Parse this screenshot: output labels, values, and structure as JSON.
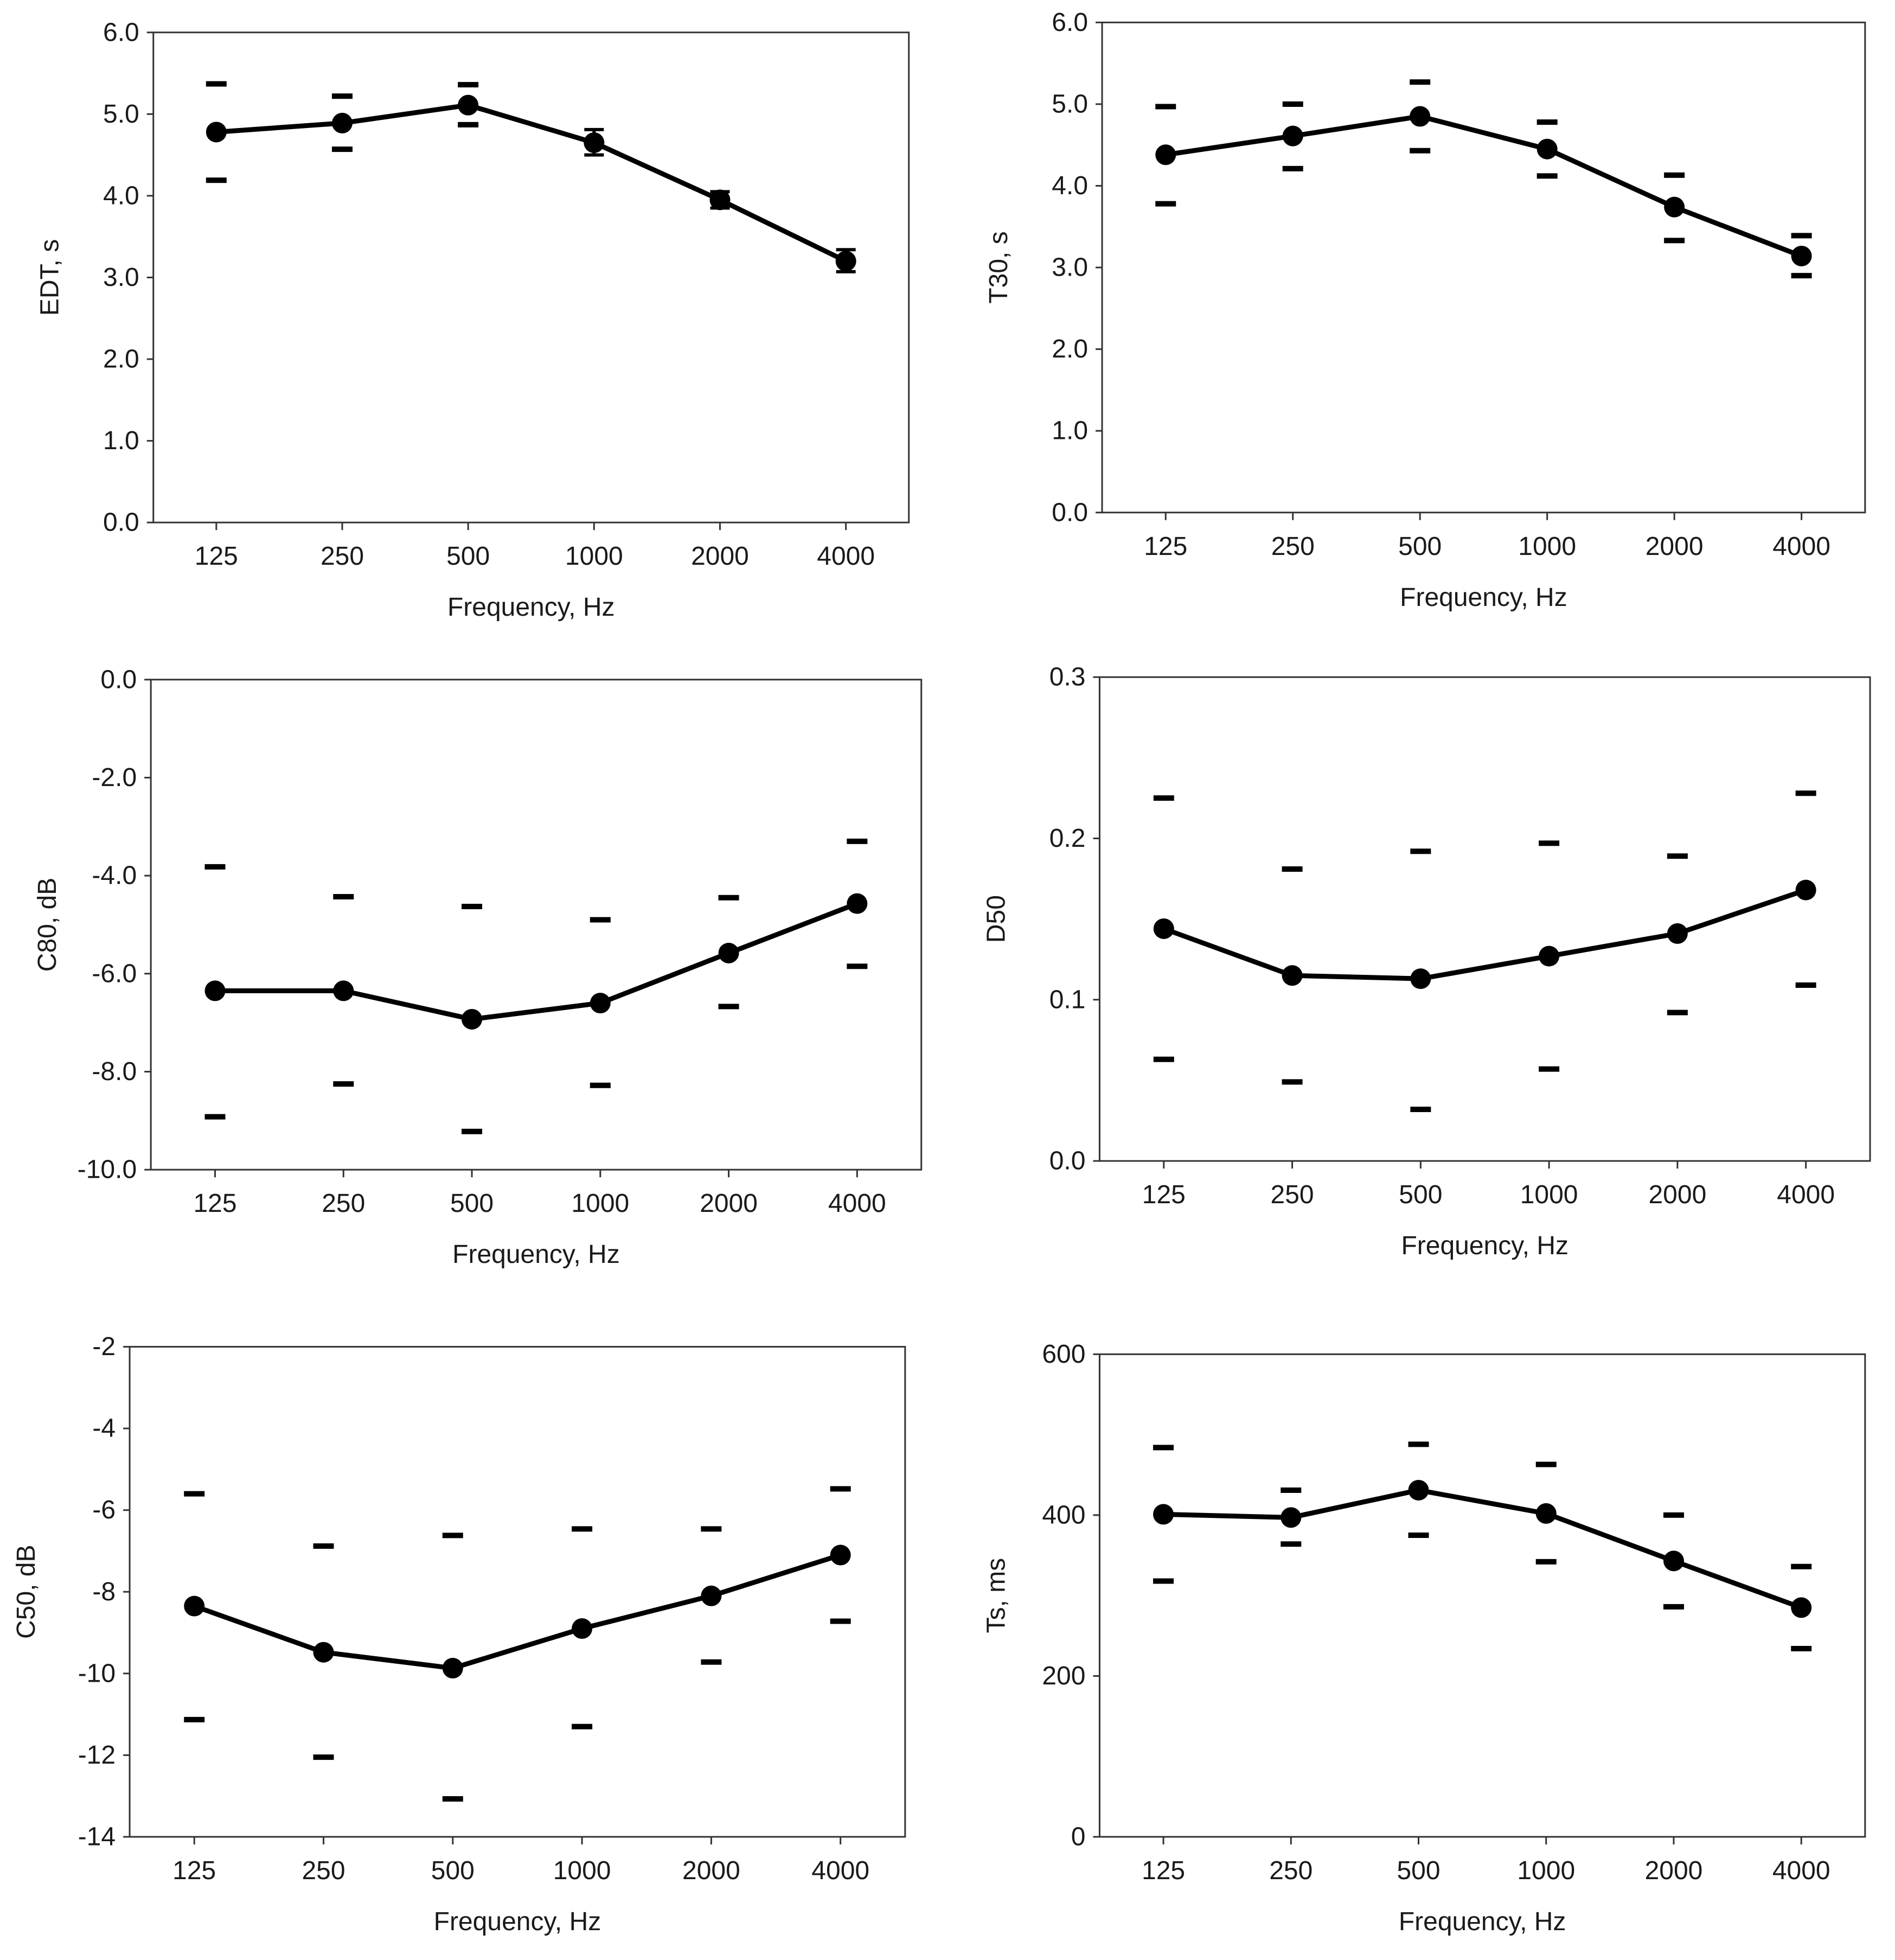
{
  "figure": {
    "background": "#ffffff",
    "line_color": "#000000"
  },
  "chart_data": [
    {
      "id": "edt",
      "type": "line",
      "xlabel": "Frequency, Hz",
      "ylabel": "EDT, s",
      "categories": [
        "125",
        "250",
        "500",
        "1000",
        "2000",
        "4000"
      ],
      "ylim": [
        0,
        6
      ],
      "yticks": [
        0,
        1,
        2,
        3,
        4,
        5,
        6
      ],
      "ytick_labels": [
        "0.0",
        "1.0",
        "2.0",
        "3.0",
        "4.0",
        "5.0",
        "6.0"
      ],
      "values": [
        4.78,
        4.89,
        5.11,
        4.65,
        3.95,
        3.2
      ],
      "upper": [
        5.37,
        5.22,
        5.36,
        4.81,
        4.05,
        3.34
      ],
      "lower": [
        4.19,
        4.57,
        4.87,
        4.5,
        3.85,
        3.07
      ],
      "small_error_bars": [
        false,
        false,
        false,
        true,
        true,
        true
      ]
    },
    {
      "id": "t30",
      "type": "line",
      "xlabel": "Frequency, Hz",
      "ylabel": "T30, s",
      "categories": [
        "125",
        "250",
        "500",
        "1000",
        "2000",
        "4000"
      ],
      "ylim": [
        0,
        6
      ],
      "yticks": [
        0,
        1,
        2,
        3,
        4,
        5,
        6
      ],
      "ytick_labels": [
        "0.0",
        "1.0",
        "2.0",
        "3.0",
        "4.0",
        "5.0",
        "6.0"
      ],
      "values": [
        4.38,
        4.61,
        4.85,
        4.45,
        3.74,
        3.14
      ],
      "upper": [
        4.97,
        5.0,
        5.27,
        4.78,
        4.13,
        3.39
      ],
      "lower": [
        3.78,
        4.21,
        4.43,
        4.12,
        3.33,
        2.9
      ],
      "small_error_bars": [
        false,
        false,
        false,
        false,
        false,
        false
      ]
    },
    {
      "id": "c80",
      "type": "line",
      "xlabel": "Frequency, Hz",
      "ylabel": "C80, dB",
      "categories": [
        "125",
        "250",
        "500",
        "1000",
        "2000",
        "4000"
      ],
      "ylim": [
        -10,
        0
      ],
      "yticks": [
        -10,
        -8,
        -6,
        -4,
        -2,
        0
      ],
      "ytick_labels": [
        "-10.0",
        "-8.0",
        "-6.0",
        "-4.0",
        "-2.0",
        "0.0"
      ],
      "values": [
        -6.35,
        -6.35,
        -6.93,
        -6.6,
        -5.58,
        -4.57
      ],
      "upper": [
        -3.82,
        -4.43,
        -4.63,
        -4.9,
        -4.45,
        -3.3
      ],
      "lower": [
        -8.92,
        -8.25,
        -9.22,
        -8.28,
        -6.67,
        -5.85
      ],
      "small_error_bars": [
        false,
        false,
        false,
        false,
        false,
        false
      ]
    },
    {
      "id": "d50",
      "type": "line",
      "xlabel": "Frequency, Hz",
      "ylabel": "D50",
      "categories": [
        "125",
        "250",
        "500",
        "1000",
        "2000",
        "4000"
      ],
      "ylim": [
        0,
        0.3
      ],
      "yticks": [
        0,
        0.1,
        0.2,
        0.3
      ],
      "ytick_labels": [
        "0.0",
        "0.1",
        "0.2",
        "0.3"
      ],
      "values": [
        0.144,
        0.115,
        0.113,
        0.127,
        0.141,
        0.168
      ],
      "upper": [
        0.225,
        0.181,
        0.192,
        0.197,
        0.189,
        0.228
      ],
      "lower": [
        0.063,
        0.049,
        0.032,
        0.057,
        0.092,
        0.109
      ],
      "small_error_bars": [
        false,
        false,
        false,
        false,
        false,
        false
      ]
    },
    {
      "id": "c50",
      "type": "line",
      "xlabel": "Frequency, Hz",
      "ylabel": "C50, dB",
      "categories": [
        "125",
        "250",
        "500",
        "1000",
        "2000",
        "4000"
      ],
      "ylim": [
        -14,
        -2
      ],
      "yticks": [
        -14,
        -12,
        -10,
        -8,
        -6,
        -4,
        -2
      ],
      "ytick_labels": [
        "-14",
        "-12",
        "-10",
        "-8",
        "-6",
        "-4",
        "-2"
      ],
      "values": [
        -8.35,
        -9.48,
        -9.87,
        -8.9,
        -8.1,
        -7.1
      ],
      "upper": [
        -5.6,
        -6.88,
        -6.62,
        -6.46,
        -6.46,
        -5.48
      ],
      "lower": [
        -11.13,
        -12.05,
        -13.07,
        -11.3,
        -9.72,
        -8.72
      ],
      "small_error_bars": [
        false,
        false,
        false,
        false,
        false,
        false
      ]
    },
    {
      "id": "ts",
      "type": "line",
      "xlabel": "Frequency, Hz",
      "ylabel": "Ts, ms",
      "categories": [
        "125",
        "250",
        "500",
        "1000",
        "2000",
        "4000"
      ],
      "ylim": [
        0,
        600
      ],
      "yticks": [
        0,
        200,
        400,
        600
      ],
      "ytick_labels": [
        "0",
        "200",
        "400",
        "600"
      ],
      "values": [
        401,
        397,
        431,
        402,
        343,
        285
      ],
      "upper": [
        484,
        431,
        488,
        463,
        400,
        336
      ],
      "lower": [
        318,
        364,
        375,
        342,
        286,
        234
      ],
      "small_error_bars": [
        false,
        false,
        false,
        false,
        false,
        false
      ]
    }
  ]
}
